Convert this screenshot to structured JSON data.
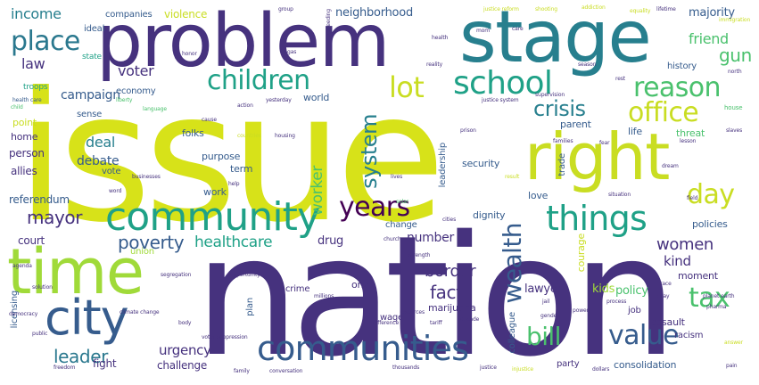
{
  "palette": {
    "dark_purple": "#440154",
    "indigo": "#46327e",
    "blue": "#365c8d",
    "teal_blue": "#277f8e",
    "teal": "#1fa187",
    "green": "#4ac16d",
    "lime": "#a0da39",
    "yellow": "#c9dd22",
    "background": "#ffffff"
  },
  "words": [
    {
      "text": "issue",
      "color": "#d7e219",
      "weight": 1.0
    },
    {
      "text": "nation",
      "color": "#46327e",
      "weight": 0.97
    },
    {
      "text": "problem",
      "color": "#46327e",
      "weight": 0.78
    },
    {
      "text": "stage",
      "color": "#277f8e",
      "weight": 0.76
    },
    {
      "text": "right",
      "color": "#c9dd22",
      "weight": 0.7
    },
    {
      "text": "time",
      "color": "#a0da39",
      "weight": 0.62
    },
    {
      "text": "city",
      "color": "#365c8d",
      "weight": 0.5
    },
    {
      "text": "community",
      "color": "#1fa187",
      "weight": 0.48
    },
    {
      "text": "communities",
      "color": "#365c8d",
      "weight": 0.44
    },
    {
      "text": "things",
      "color": "#1fa187",
      "weight": 0.4
    },
    {
      "text": "school",
      "color": "#1fa187",
      "weight": 0.38
    },
    {
      "text": "children",
      "color": "#1fa187",
      "weight": 0.36
    },
    {
      "text": "reason",
      "color": "#4ac16d",
      "weight": 0.34
    },
    {
      "text": "place",
      "color": "#2a788e",
      "weight": 0.34
    },
    {
      "text": "lot",
      "color": "#c9dd22",
      "weight": 0.33
    },
    {
      "text": "office",
      "color": "#c9dd22",
      "weight": 0.33
    },
    {
      "text": "day",
      "color": "#c9dd22",
      "weight": 0.32
    },
    {
      "text": "value",
      "color": "#365c8d",
      "weight": 0.31
    },
    {
      "text": "tax",
      "color": "#4ac16d",
      "weight": 0.3
    },
    {
      "text": "years",
      "color": "#440154",
      "weight": 0.3
    },
    {
      "text": "wealth",
      "color": "#365c8d",
      "weight": 0.3
    },
    {
      "text": "bill",
      "color": "#4ac16d",
      "weight": 0.28
    },
    {
      "text": "system",
      "color": "#277f8e",
      "weight": 0.27
    },
    {
      "text": "crisis",
      "color": "#277f8e",
      "weight": 0.26
    },
    {
      "text": "poverty",
      "color": "#365c8d",
      "weight": 0.22
    },
    {
      "text": "mayor",
      "color": "#46327e",
      "weight": 0.2
    },
    {
      "text": "leader",
      "color": "#2a788e",
      "weight": 0.2
    },
    {
      "text": "healthcare",
      "color": "#1fa187",
      "weight": 0.18
    },
    {
      "text": "women",
      "color": "#46327e",
      "weight": 0.17
    },
    {
      "text": "border",
      "color": "#46327e",
      "weight": 0.17
    },
    {
      "text": "fact",
      "color": "#46327e",
      "weight": 0.17
    },
    {
      "text": "gun",
      "color": "#4ac16d",
      "weight": 0.16
    },
    {
      "text": "worker",
      "color": "#4ac16d",
      "weight": 0.16
    },
    {
      "text": "deal",
      "color": "#277f8e",
      "weight": 0.15
    },
    {
      "text": "income",
      "color": "#277f8e",
      "weight": 0.15
    },
    {
      "text": "voter",
      "color": "#46327e",
      "weight": 0.15
    },
    {
      "text": "number",
      "color": "#46327e",
      "weight": 0.15
    },
    {
      "text": "law",
      "color": "#46327e",
      "weight": 0.15
    },
    {
      "text": "friend",
      "color": "#4ac16d",
      "weight": 0.14
    },
    {
      "text": "kind",
      "color": "#46327e",
      "weight": 0.14
    },
    {
      "text": "urgency",
      "color": "#46327e",
      "weight": 0.14
    },
    {
      "text": "debate",
      "color": "#365c8d",
      "weight": 0.14
    },
    {
      "text": "campaign",
      "color": "#365c8d",
      "weight": 0.13
    },
    {
      "text": "majority",
      "color": "#365c8d",
      "weight": 0.13
    },
    {
      "text": "neighborhood",
      "color": "#365c8d",
      "weight": 0.13
    },
    {
      "text": "violence",
      "color": "#c9dd22",
      "weight": 0.12
    },
    {
      "text": "kids",
      "color": "#a0da39",
      "weight": 0.12
    },
    {
      "text": "policy",
      "color": "#4ac16d",
      "weight": 0.12
    },
    {
      "text": "lawyer",
      "color": "#46327e",
      "weight": 0.12
    },
    {
      "text": "drug",
      "color": "#46327e",
      "weight": 0.12
    },
    {
      "text": "court",
      "color": "#46327e",
      "weight": 0.12
    },
    {
      "text": "fight",
      "color": "#46327e",
      "weight": 0.12
    },
    {
      "text": "challenge",
      "color": "#46327e",
      "weight": 0.12
    },
    {
      "text": "allies",
      "color": "#46327e",
      "weight": 0.11
    },
    {
      "text": "person",
      "color": "#46327e",
      "weight": 0.11
    },
    {
      "text": "home",
      "color": "#46327e",
      "weight": 0.11
    },
    {
      "text": "point",
      "color": "#c9dd22",
      "weight": 0.11
    },
    {
      "text": "companies",
      "color": "#365c8d",
      "weight": 0.11
    },
    {
      "text": "ideal",
      "color": "#365c8d",
      "weight": 0.11
    },
    {
      "text": "economy",
      "color": "#365c8d",
      "weight": 0.11
    },
    {
      "text": "world",
      "color": "#365c8d",
      "weight": 0.11
    },
    {
      "text": "sense",
      "color": "#365c8d",
      "weight": 0.11
    },
    {
      "text": "folks",
      "color": "#365c8d",
      "weight": 0.11
    },
    {
      "text": "purpose",
      "color": "#365c8d",
      "weight": 0.11
    },
    {
      "text": "term",
      "color": "#365c8d",
      "weight": 0.11
    },
    {
      "text": "work",
      "color": "#365c8d",
      "weight": 0.11
    },
    {
      "text": "vote",
      "color": "#365c8d",
      "weight": 0.1
    },
    {
      "text": "referendum",
      "color": "#365c8d",
      "weight": 0.11
    },
    {
      "text": "union",
      "color": "#a0da39",
      "weight": 0.1
    },
    {
      "text": "history",
      "color": "#365c8d",
      "weight": 0.1
    },
    {
      "text": "parent",
      "color": "#365c8d",
      "weight": 0.11
    },
    {
      "text": "threat",
      "color": "#4ac16d",
      "weight": 0.11
    },
    {
      "text": "life",
      "color": "#365c8d",
      "weight": 0.1
    },
    {
      "text": "security",
      "color": "#365c8d",
      "weight": 0.11
    },
    {
      "text": "love",
      "color": "#365c8d",
      "weight": 0.11
    },
    {
      "text": "dignity",
      "color": "#365c8d",
      "weight": 0.11
    },
    {
      "text": "change",
      "color": "#365c8d",
      "weight": 0.11
    },
    {
      "text": "courage",
      "color": "#c9dd22",
      "weight": 0.11
    },
    {
      "text": "policies",
      "color": "#365c8d",
      "weight": 0.11
    },
    {
      "text": "moment",
      "color": "#46327e",
      "weight": 0.11
    },
    {
      "text": "assault",
      "color": "#46327e",
      "weight": 0.11
    },
    {
      "text": "racism",
      "color": "#46327e",
      "weight": 0.1
    },
    {
      "text": "job",
      "color": "#46327e",
      "weight": 0.1
    },
    {
      "text": "wage",
      "color": "#46327e",
      "weight": 0.1
    },
    {
      "text": "marijuana",
      "color": "#46327e",
      "weight": 0.1
    },
    {
      "text": "one",
      "color": "#46327e",
      "weight": 0.1
    },
    {
      "text": "crime",
      "color": "#46327e",
      "weight": 0.1
    },
    {
      "text": "party",
      "color": "#46327e",
      "weight": 0.1
    },
    {
      "text": "consolidation",
      "color": "#365c8d",
      "weight": 0.1
    },
    {
      "text": "trade",
      "color": "#365c8d",
      "weight": 0.1
    },
    {
      "text": "colleague",
      "color": "#365c8d",
      "weight": 0.1
    },
    {
      "text": "plan",
      "color": "#365c8d",
      "weight": 0.1
    },
    {
      "text": "licensing",
      "color": "#365c8d",
      "weight": 0.1
    },
    {
      "text": "leadership",
      "color": "#365c8d",
      "weight": 0.1
    },
    {
      "text": "state",
      "color": "#1fa187",
      "weight": 0.06
    },
    {
      "text": "troops",
      "color": "#1fa187",
      "weight": 0.06
    },
    {
      "text": "health care",
      "color": "#365c8d",
      "weight": 0.05
    },
    {
      "text": "child",
      "color": "#4ac16d",
      "weight": 0.05
    },
    {
      "text": "liberty",
      "color": "#4ac16d",
      "weight": 0.05
    },
    {
      "text": "language",
      "color": "#4ac16d",
      "weight": 0.05
    },
    {
      "text": "yesterday",
      "color": "#46327e",
      "weight": 0.05
    },
    {
      "text": "action",
      "color": "#46327e",
      "weight": 0.05
    },
    {
      "text": "justice system",
      "color": "#46327e",
      "weight": 0.05
    },
    {
      "text": "prison",
      "color": "#46327e",
      "weight": 0.05
    },
    {
      "text": "supervision",
      "color": "#46327e",
      "weight": 0.05
    },
    {
      "text": "families",
      "color": "#46327e",
      "weight": 0.05
    },
    {
      "text": "fear",
      "color": "#46327e",
      "weight": 0.05
    },
    {
      "text": "house",
      "color": "#4ac16d",
      "weight": 0.05
    },
    {
      "text": "lesson",
      "color": "#46327e",
      "weight": 0.05
    },
    {
      "text": "slaves",
      "color": "#46327e",
      "weight": 0.05
    },
    {
      "text": "businesses",
      "color": "#46327e",
      "weight": 0.05
    },
    {
      "text": "housing",
      "color": "#46327e",
      "weight": 0.05
    },
    {
      "text": "countries",
      "color": "#c9dd22",
      "weight": 0.05
    },
    {
      "text": "cause",
      "color": "#46327e",
      "weight": 0.05
    },
    {
      "text": "help",
      "color": "#46327e",
      "weight": 0.05
    },
    {
      "text": "solar",
      "color": "#4ac16d",
      "weight": 0.05
    },
    {
      "text": "word",
      "color": "#46327e",
      "weight": 0.05
    },
    {
      "text": "cities",
      "color": "#46327e",
      "weight": 0.05
    },
    {
      "text": "church",
      "color": "#46327e",
      "weight": 0.05
    },
    {
      "text": "strength",
      "color": "#46327e",
      "weight": 0.05
    },
    {
      "text": "segregation",
      "color": "#46327e",
      "weight": 0.05
    },
    {
      "text": "opportunity",
      "color": "#46327e",
      "weight": 0.05
    },
    {
      "text": "climate change",
      "color": "#46327e",
      "weight": 0.05
    },
    {
      "text": "democracy",
      "color": "#46327e",
      "weight": 0.05
    },
    {
      "text": "public",
      "color": "#46327e",
      "weight": 0.05
    },
    {
      "text": "body",
      "color": "#46327e",
      "weight": 0.05
    },
    {
      "text": "voter suppression",
      "color": "#46327e",
      "weight": 0.05
    },
    {
      "text": "resources",
      "color": "#46327e",
      "weight": 0.05
    },
    {
      "text": "difference",
      "color": "#46327e",
      "weight": 0.05
    },
    {
      "text": "decade",
      "color": "#46327e",
      "weight": 0.05
    },
    {
      "text": "tariff",
      "color": "#46327e",
      "weight": 0.05
    },
    {
      "text": "jail",
      "color": "#46327e",
      "weight": 0.05
    },
    {
      "text": "process",
      "color": "#46327e",
      "weight": 0.05
    },
    {
      "text": "pharma",
      "color": "#46327e",
      "weight": 0.05
    },
    {
      "text": "planet earth",
      "color": "#46327e",
      "weight": 0.05
    },
    {
      "text": "dollars",
      "color": "#46327e",
      "weight": 0.05
    },
    {
      "text": "justice",
      "color": "#46327e",
      "weight": 0.05
    },
    {
      "text": "injustice",
      "color": "#c9dd22",
      "weight": 0.05
    },
    {
      "text": "thousands",
      "color": "#46327e",
      "weight": 0.05
    },
    {
      "text": "freedom",
      "color": "#46327e",
      "weight": 0.05
    },
    {
      "text": "conversation",
      "color": "#46327e",
      "weight": 0.05
    },
    {
      "text": "family",
      "color": "#46327e",
      "weight": 0.05
    },
    {
      "text": "dream",
      "color": "#46327e",
      "weight": 0.05
    },
    {
      "text": "situation",
      "color": "#46327e",
      "weight": 0.05
    },
    {
      "text": "field",
      "color": "#46327e",
      "weight": 0.05
    },
    {
      "text": "race",
      "color": "#46327e",
      "weight": 0.05
    },
    {
      "text": "pain",
      "color": "#46327e",
      "weight": 0.05
    },
    {
      "text": "shooting",
      "color": "#c9dd22",
      "weight": 0.05
    },
    {
      "text": "addiction",
      "color": "#c9dd22",
      "weight": 0.05
    },
    {
      "text": "equality",
      "color": "#c9dd22",
      "weight": 0.05
    },
    {
      "text": "lifetime",
      "color": "#46327e",
      "weight": 0.05
    },
    {
      "text": "immigration",
      "color": "#c9dd22",
      "weight": 0.05
    },
    {
      "text": "justice reform",
      "color": "#c9dd22",
      "weight": 0.05
    },
    {
      "text": "group",
      "color": "#46327e",
      "weight": 0.05
    },
    {
      "text": "reality",
      "color": "#46327e",
      "weight": 0.05
    },
    {
      "text": "health",
      "color": "#46327e",
      "weight": 0.05
    },
    {
      "text": "care",
      "color": "#46327e",
      "weight": 0.05
    },
    {
      "text": "north",
      "color": "#46327e",
      "weight": 0.05
    },
    {
      "text": "honor",
      "color": "#46327e",
      "weight": 0.05
    },
    {
      "text": "gas",
      "color": "#46327e",
      "weight": 0.05
    },
    {
      "text": "proceeding",
      "color": "#46327e",
      "weight": 0.05
    },
    {
      "text": "lives",
      "color": "#46327e",
      "weight": 0.05
    },
    {
      "text": "result",
      "color": "#c9dd22",
      "weight": 0.05
    },
    {
      "text": "millions",
      "color": "#46327e",
      "weight": 0.05
    },
    {
      "text": "mom",
      "color": "#46327e",
      "weight": 0.05
    },
    {
      "text": "season",
      "color": "#46327e",
      "weight": 0.05
    },
    {
      "text": "rest",
      "color": "#46327e",
      "weight": 0.05
    },
    {
      "text": "agenda",
      "color": "#46327e",
      "weight": 0.05
    },
    {
      "text": "solution",
      "color": "#46327e",
      "weight": 0.05
    },
    {
      "text": "gender",
      "color": "#46327e",
      "weight": 0.05
    },
    {
      "text": "power",
      "color": "#46327e",
      "weight": 0.05
    },
    {
      "text": "today",
      "color": "#46327e",
      "weight": 0.05
    },
    {
      "text": "answer",
      "color": "#c9dd22",
      "weight": 0.05
    }
  ]
}
